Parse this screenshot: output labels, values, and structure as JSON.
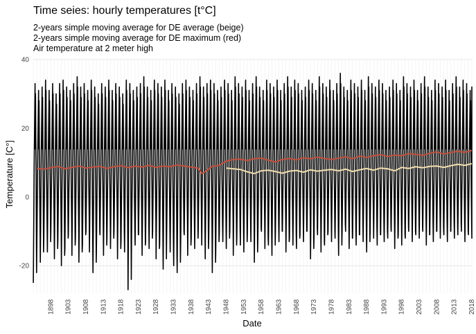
{
  "chart_data": {
    "type": "line",
    "title": "Time seies: hourly temperatures [t°C]",
    "subtitles": [
      "2-years simple moving average for DE average (beige)",
      "2-years simple moving average for DE maximum (red)",
      "Air temperature at 2 meter high"
    ],
    "xlabel": "Date",
    "ylabel": "Temperature [C°]",
    "xlim": [
      1893,
      2018
    ],
    "ylim": [
      -28,
      40
    ],
    "yticks": [
      -20,
      0,
      20,
      40
    ],
    "xticks": [
      "1898",
      "1903",
      "1908",
      "1913",
      "1918",
      "1923",
      "1928",
      "1933",
      "1938",
      "1943",
      "1948",
      "1953",
      "1958",
      "1963",
      "1968",
      "1973",
      "1978",
      "1983",
      "1988",
      "1993",
      "1998",
      "2003",
      "2008",
      "2013",
      "2018"
    ],
    "grid": true,
    "legend": "none",
    "series": [
      {
        "color": "#000000",
        "seasonal_amplitude_note": "hourly temperatures oscillating annually",
        "annual_max": [
          33,
          31,
          32,
          34,
          31,
          33,
          30,
          33,
          34,
          32,
          31,
          33,
          35,
          32,
          33,
          31,
          34,
          32,
          30,
          33,
          32,
          34,
          31,
          33,
          32,
          30,
          34,
          33,
          31,
          32,
          33,
          35,
          32,
          31,
          34,
          33,
          32,
          34,
          31,
          33,
          32,
          30,
          33,
          34,
          32,
          31,
          33,
          35,
          32,
          33,
          34,
          33,
          31,
          32,
          34,
          33,
          31,
          35,
          33,
          32,
          34,
          31,
          33,
          35,
          32,
          31,
          34,
          33,
          32,
          34,
          31,
          33,
          35,
          32,
          34,
          33,
          31,
          32,
          34,
          33,
          31,
          35,
          33,
          32,
          34,
          31,
          33,
          36,
          32,
          31,
          34,
          33,
          32,
          34,
          31,
          35,
          33,
          32,
          34,
          33,
          31,
          32,
          34,
          33,
          31,
          35,
          33,
          32,
          34,
          31,
          33,
          35,
          32,
          31,
          34,
          33,
          32,
          34,
          31,
          33,
          35,
          32,
          34,
          33,
          31,
          32
        ],
        "annual_min": [
          -25,
          -14,
          -19,
          -12,
          -16,
          -10,
          -18,
          -13,
          -20,
          -15,
          -11,
          -17,
          -12,
          -19,
          -14,
          -10,
          -16,
          -22,
          -13,
          -11,
          -17,
          -12,
          -15,
          -10,
          -18,
          -13,
          -16,
          -27,
          -12,
          -14,
          -11,
          -17,
          -13,
          -15,
          -10,
          -18,
          -14,
          -21,
          -12,
          -16,
          -20,
          -22,
          -13,
          -11,
          -17,
          -12,
          -15,
          -10,
          -14,
          -18,
          -12,
          -22,
          -16,
          -11,
          -13,
          -15,
          -10,
          -17,
          -12,
          -14,
          -16,
          -11,
          -13,
          -19,
          -12,
          -10,
          -15,
          -14,
          -17,
          -11,
          -13,
          -10,
          -16,
          -12,
          -14,
          -15,
          -11,
          -13,
          -10,
          -18,
          -12,
          -11,
          -16,
          -14,
          -10,
          -13,
          -12,
          -17,
          -11,
          -10,
          -15,
          -12,
          -14,
          -11,
          -13,
          -16,
          -10,
          -12,
          -14,
          -11,
          -13,
          -12,
          -10,
          -15,
          -11,
          -14,
          -12,
          -10,
          -13,
          -11,
          -12,
          -10,
          -14,
          -11,
          -13,
          -10,
          -12,
          -11,
          -13,
          -10,
          -12,
          -11,
          -10,
          -13,
          -11,
          -12
        ]
      },
      {
        "color": "#c24f3d",
        "x": [
          1894,
          1896,
          1898,
          1900,
          1902,
          1904,
          1906,
          1908,
          1910,
          1912,
          1914,
          1916,
          1918,
          1920,
          1922,
          1924,
          1926,
          1928,
          1930,
          1932,
          1934,
          1936,
          1938,
          1940,
          1941,
          1942,
          1944,
          1946,
          1948,
          1950,
          1952,
          1954,
          1956,
          1958,
          1960,
          1962,
          1964,
          1966,
          1968,
          1970,
          1972,
          1974,
          1976,
          1978,
          1980,
          1982,
          1984,
          1986,
          1988,
          1990,
          1992,
          1994,
          1996,
          1998,
          2000,
          2002,
          2004,
          2006,
          2008,
          2010,
          2012,
          2014,
          2016,
          2018
        ],
        "values": [
          8.3,
          8.1,
          8.5,
          8.9,
          8.2,
          8.6,
          9.0,
          8.4,
          8.7,
          8.9,
          8.3,
          8.8,
          9.1,
          8.5,
          9.0,
          8.7,
          9.2,
          8.6,
          9.0,
          8.8,
          9.3,
          9.0,
          8.7,
          8.4,
          6.8,
          7.3,
          8.9,
          9.2,
          10.4,
          10.9,
          11.0,
          10.6,
          11.1,
          11.3,
          10.7,
          10.2,
          10.9,
          11.2,
          10.8,
          11.4,
          11.1,
          11.6,
          11.2,
          10.9,
          11.3,
          11.7,
          11.1,
          11.9,
          11.5,
          12.0,
          12.3,
          11.8,
          12.2,
          12.0,
          12.6,
          12.4,
          12.1,
          12.7,
          13.1,
          12.5,
          12.9,
          13.3,
          13.0,
          13.5
        ]
      },
      {
        "color": "#f3dfb0",
        "x": [
          1948,
          1950,
          1952,
          1954,
          1956,
          1958,
          1960,
          1962,
          1964,
          1966,
          1968,
          1970,
          1972,
          1974,
          1976,
          1978,
          1980,
          1982,
          1984,
          1986,
          1988,
          1990,
          1992,
          1994,
          1996,
          1998,
          2000,
          2002,
          2004,
          2006,
          2008,
          2010,
          2012,
          2014,
          2016,
          2018
        ],
        "values": [
          8.4,
          8.2,
          8.0,
          7.3,
          6.8,
          7.6,
          7.8,
          7.4,
          6.9,
          7.5,
          7.7,
          7.2,
          7.9,
          7.5,
          7.8,
          8.0,
          7.6,
          8.1,
          7.4,
          7.9,
          8.3,
          7.8,
          8.4,
          8.2,
          7.6,
          8.6,
          8.3,
          8.8,
          8.5,
          8.9,
          9.0,
          8.6,
          9.1,
          9.5,
          9.2,
          9.7
        ]
      }
    ]
  }
}
